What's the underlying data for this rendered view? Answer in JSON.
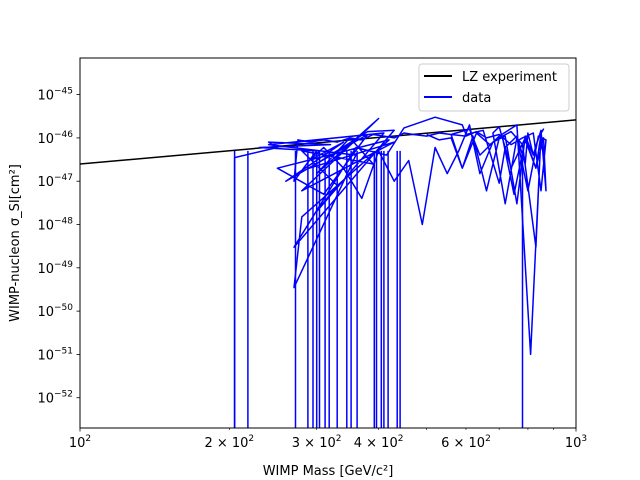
{
  "chart_data": {
    "type": "line",
    "xlabel": "WIMP Mass [GeV/c²]",
    "ylabel": "WIMP-nucleon σ_SI[cm²]",
    "xscale": "log",
    "yscale": "log",
    "xlim": [
      100,
      1000
    ],
    "ylim": [
      2e-53,
      7e-45
    ],
    "grid": false,
    "legend_position": "upper right",
    "x_ticks": [
      {
        "value": 100,
        "base": "10",
        "exp": "2"
      },
      {
        "value": 200,
        "base": "2 × 10",
        "exp": "2"
      },
      {
        "value": 300,
        "base": "3 × 10",
        "exp": "2"
      },
      {
        "value": 400,
        "base": "4 × 10",
        "exp": "2"
      },
      {
        "value": 600,
        "base": "6 × 10",
        "exp": "2"
      },
      {
        "value": 1000,
        "base": "10",
        "exp": "3"
      }
    ],
    "y_ticks": [
      {
        "value": 1e-52,
        "base": "10",
        "exp": "−52"
      },
      {
        "value": 1e-51,
        "base": "10",
        "exp": "−51"
      },
      {
        "value": 1e-50,
        "base": "10",
        "exp": "−50"
      },
      {
        "value": 1e-49,
        "base": "10",
        "exp": "−49"
      },
      {
        "value": 1e-48,
        "base": "10",
        "exp": "−48"
      },
      {
        "value": 1e-47,
        "base": "10",
        "exp": "−47"
      },
      {
        "value": 1e-46,
        "base": "10",
        "exp": "−46"
      },
      {
        "value": 1e-45,
        "base": "10",
        "exp": "−45"
      }
    ],
    "series": [
      {
        "name": "LZ experiment",
        "color": "#000000",
        "x": [
          100,
          1000
        ],
        "y": [
          2.5e-47,
          2.6e-46
        ]
      },
      {
        "name": "data",
        "color": "#0000ff",
        "x": [
          205,
          205,
          250,
          240,
          320,
          230,
          300,
          290,
          340,
          260,
          380,
          310,
          250,
          420,
          280,
          270,
          360,
          240,
          410,
          300,
          330,
          280,
          390,
          350,
          300,
          400,
          280,
          430,
          290,
          380,
          430,
          270,
          360,
          415,
          450,
          520,
          590,
          600,
          650,
          700,
          720,
          760,
          790,
          800,
          820,
          840,
          860,
          850,
          830,
          780,
          740,
          700,
          660,
          620,
          590,
          560,
          610,
          640,
          700,
          760,
          810,
          850,
          830,
          790,
          740,
          700,
          680,
          720,
          760,
          800,
          840,
          870,
          850,
          820,
          780,
          740,
          700,
          660,
          630,
          600,
          560,
          530,
          500,
          470,
          450,
          430,
          410,
          390,
          370,
          350,
          330,
          310,
          290,
          275,
          270,
          290,
          310,
          340,
          370,
          400,
          430,
          460,
          490,
          520,
          550,
          580,
          610,
          640,
          680,
          720,
          760,
          790,
          820,
          850,
          870,
          860,
          830,
          790,
          750,
          710,
          670,
          630,
          590,
          560,
          530,
          500
        ],
        "y": [
          2e-53,
          3.5e-47,
          6e-47,
          8e-47,
          7e-47,
          6e-47,
          5e-47,
          3e-47,
          8e-47,
          1e-47,
          1.2e-46,
          5e-48,
          2e-47,
          9e-47,
          1.5e-48,
          3.5e-50,
          4e-47,
          7e-47,
          1.3e-46,
          2e-48,
          8e-48,
          5e-47,
          2.5e-47,
          1e-46,
          1.5e-47,
          2.8e-46,
          6e-48,
          8e-47,
          2e-47,
          1.4e-46,
          1.5e-46,
          3e-49,
          6e-47,
          4e-47,
          1.7e-46,
          3e-46,
          2e-46,
          1.2e-46,
          1.5e-46,
          9e-48,
          6e-47,
          1.1e-46,
          2.5e-47,
          1.3e-46,
          4e-47,
          1e-46,
          1.6e-46,
          1.3e-46,
          3e-49,
          7e-47,
          1.4e-46,
          1e-46,
          6e-48,
          1.1e-46,
          2e-47,
          1.2e-46,
          1.6e-46,
          4e-47,
          1.1e-46,
          2e-46,
          1e-51,
          1.2e-46,
          2e-47,
          1e-46,
          2e-47,
          1.8e-46,
          1.3e-46,
          3e-48,
          1e-46,
          6e-48,
          1.1e-46,
          9e-47,
          6e-48,
          1.3e-46,
          1e-46,
          7e-47,
          1.2e-46,
          1e-46,
          1.4e-46,
          1.1e-46,
          1.2e-46,
          1.3e-46,
          1.1e-46,
          1.2e-46,
          1.3e-46,
          1e-46,
          1.1e-46,
          1.2e-46,
          9e-47,
          1e-46,
          8e-47,
          9e-47,
          8e-47,
          9e-47,
          1e-47,
          3e-47,
          6e-47,
          2e-47,
          4e-48,
          5e-47,
          1e-47,
          3e-47,
          1e-48,
          6e-47,
          1.5e-47,
          5e-47,
          2e-46,
          1.5e-47,
          8e-47,
          1.1e-46,
          3e-48,
          1.1e-46,
          4e-47,
          1.5e-46,
          6e-48,
          1e-46,
          2e-47,
          9e-47,
          5e-48,
          1.1e-46,
          7e-47,
          1.3e-46,
          2e-47,
          1e-46,
          9e-47,
          1.2e-46
        ]
      }
    ],
    "drop_lines_x": [
      205,
      218,
      272,
      288,
      295,
      300,
      304,
      312,
      318,
      330,
      345,
      352,
      362,
      392,
      396,
      405,
      410,
      418,
      436,
      442,
      780
    ]
  }
}
